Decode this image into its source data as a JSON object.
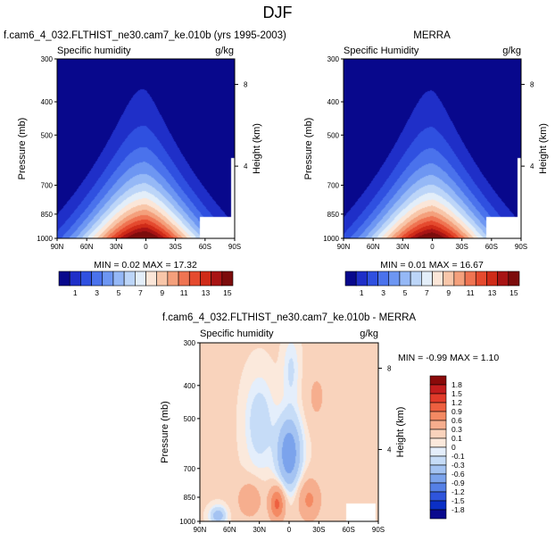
{
  "page_title": "DJF",
  "panels": [
    {
      "id": "model",
      "header": "f.cam6_4_032.FLTHIST_ne30.cam7_ke.010b (yrs 1995-2003)",
      "left_label": "Specific humidity",
      "unit": "g/kg",
      "stats": "MIN =  0.02  MAX =  17.32"
    },
    {
      "id": "obs",
      "header": "MERRA",
      "left_label": "Specific Humidity",
      "unit": "g/kg",
      "stats": "MIN =  0.01  MAX =  16.67"
    },
    {
      "id": "diff",
      "header": "f.cam6_4_032.FLTHIST_ne30.cam7_ke.010b - MERRA",
      "left_label": "Specific humidity",
      "unit": "g/kg",
      "stats": "MIN = -0.99  MAX =  1.10"
    }
  ],
  "chart_data": [
    {
      "type": "heatmap",
      "title": "f.cam6_4_032.FLTHIST_ne30.cam7_ke.010b (yrs 1995-2003)",
      "subtitle": "Specific humidity",
      "units": "g/kg",
      "xlabel": "",
      "ylabel": "Pressure (mb)",
      "ylabel_right": "Height (km)",
      "x_ticks": [
        "90N",
        "60N",
        "30N",
        "0",
        "30S",
        "60S",
        "90S"
      ],
      "y_ticks": [
        "300",
        "400",
        "500",
        "700",
        "850",
        "1000"
      ],
      "y_scale": "log",
      "y_right_ticks": [
        "8",
        "4"
      ],
      "stats": {
        "min": 0.02,
        "max": 17.32
      },
      "levels": [
        1,
        3,
        5,
        7,
        9,
        11,
        13,
        15
      ],
      "colorbar_labels": [
        "1",
        "3",
        "5",
        "7",
        "9",
        "11",
        "13",
        "15"
      ],
      "peak_value": 16,
      "peak_location": {
        "lat": 5,
        "pressure": 1000
      }
    },
    {
      "type": "heatmap",
      "title": "MERRA",
      "subtitle": "Specific Humidity",
      "units": "g/kg",
      "xlabel": "",
      "ylabel": "Pressure (mb)",
      "ylabel_right": "Height (km)",
      "x_ticks": [
        "90N",
        "60N",
        "30N",
        "0",
        "30S",
        "60S",
        "90S"
      ],
      "y_ticks": [
        "300",
        "400",
        "500",
        "700",
        "850",
        "1000"
      ],
      "y_scale": "log",
      "y_right_ticks": [
        "8",
        "4"
      ],
      "stats": {
        "min": 0.01,
        "max": 16.67
      },
      "levels": [
        1,
        3,
        5,
        7,
        9,
        11,
        13,
        15
      ],
      "colorbar_labels": [
        "1",
        "3",
        "5",
        "7",
        "9",
        "11",
        "13",
        "15"
      ],
      "peak_value": 15.5,
      "peak_location": {
        "lat": 3,
        "pressure": 1000
      }
    },
    {
      "type": "heatmap",
      "title": "f.cam6_4_032.FLTHIST_ne30.cam7_ke.010b - MERRA",
      "subtitle": "Specific humidity",
      "units": "g/kg",
      "xlabel": "",
      "ylabel": "Pressure (mb)",
      "ylabel_right": "Height (km)",
      "x_ticks": [
        "90N",
        "60N",
        "30N",
        "0",
        "30S",
        "60S",
        "90S"
      ],
      "y_ticks": [
        "300",
        "400",
        "500",
        "700",
        "850",
        "1000"
      ],
      "y_scale": "log",
      "y_right_ticks": [
        "8",
        "4"
      ],
      "stats": {
        "min": -0.99,
        "max": 1.1
      },
      "colorbar_labels": [
        "1.8",
        "1.5",
        "1.2",
        "0.9",
        "0.6",
        "0.3",
        "0.1",
        "0",
        "-0.1",
        "-0.3",
        "-0.6",
        "-0.9",
        "-1.2",
        "-1.5",
        "-1.8"
      ],
      "features": [
        {
          "sign": "negative",
          "lat": 0,
          "pressure": 680,
          "value": -0.9
        },
        {
          "sign": "positive",
          "lat": 15,
          "pressure": 880,
          "value": 0.9
        },
        {
          "sign": "positive",
          "lat": -20,
          "pressure": 870,
          "value": 0.6
        }
      ]
    }
  ],
  "colors": {
    "abs_palette": [
      "#08088c",
      "#1f2fc8",
      "#2f50e0",
      "#4a72ec",
      "#6d96f2",
      "#95b8f6",
      "#bcd5f8",
      "#e3eef9",
      "#fbe6d8",
      "#f8c6a9",
      "#f4a07c",
      "#ef7452",
      "#e54a2e",
      "#cf2b18",
      "#a81414",
      "#7c0c0c"
    ],
    "diff_palette": [
      "#8a0a0a",
      "#c31d1d",
      "#e23b2a",
      "#ee6040",
      "#f48a63",
      "#f6ae8e",
      "#f9d3bc",
      "#fbe9dc",
      "#e4eefb",
      "#c6dcf7",
      "#a4c3f2",
      "#7ba3ec",
      "#5580e6",
      "#2f55dc",
      "#0b2fc6",
      "#0a0a8e"
    ],
    "masked": "#ffffff"
  }
}
